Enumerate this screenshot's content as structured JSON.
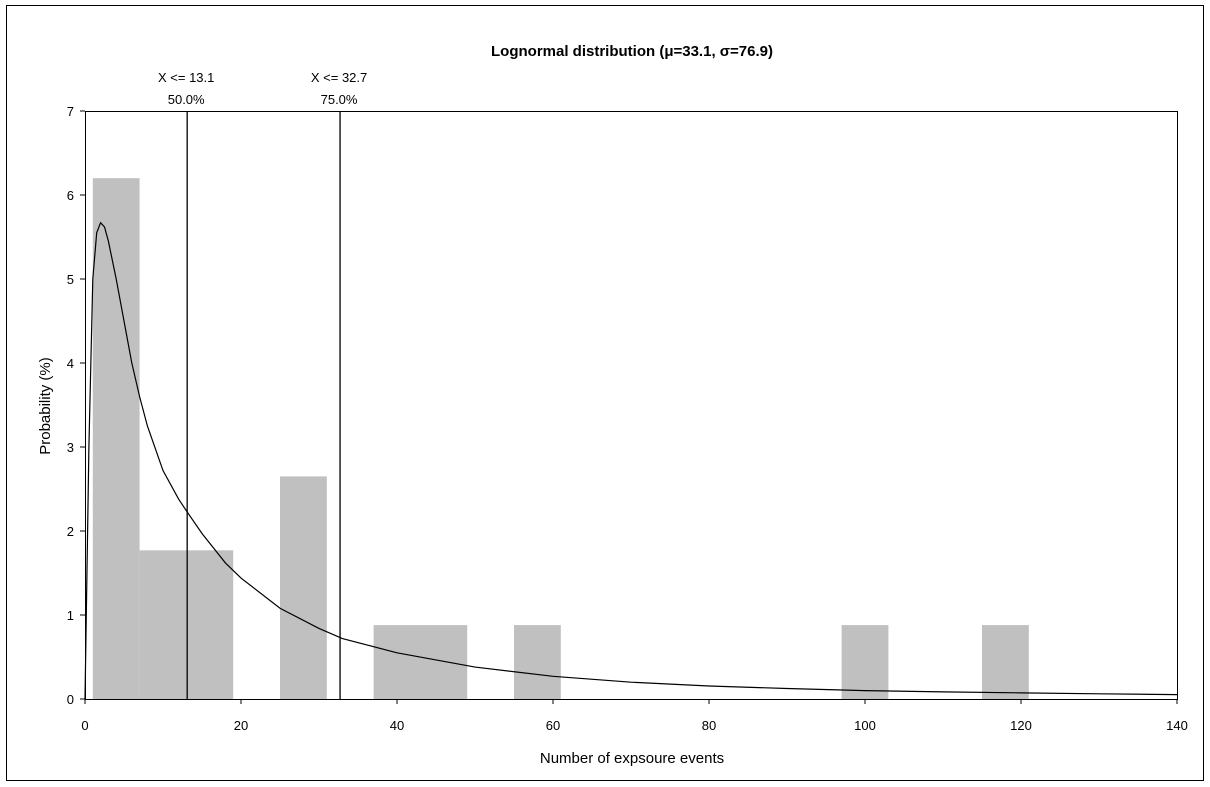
{
  "chart_data": {
    "type": "bar",
    "title": "Lognormal distribution (μ=33.1, σ=76.9)",
    "xlabel": "Number of expsoure events",
    "ylabel": "Probability (%)",
    "xlim": [
      0,
      140
    ],
    "ylim": [
      0,
      7
    ],
    "x_ticks": [
      "0",
      "20",
      "40",
      "60",
      "80",
      "100",
      "120",
      "140"
    ],
    "y_ticks": [
      "0",
      "1",
      "2",
      "3",
      "4",
      "5",
      "6",
      "7"
    ],
    "grid": false,
    "legend": "none",
    "histogram": {
      "name": "",
      "color": "#c0c0c0",
      "bins": [
        {
          "x0": 1,
          "x1": 7,
          "value": 6.2
        },
        {
          "x0": 7,
          "x1": 19,
          "value": 1.77
        },
        {
          "x0": 25,
          "x1": 31,
          "value": 2.65
        },
        {
          "x0": 37,
          "x1": 49,
          "value": 0.88
        },
        {
          "x0": 55,
          "x1": 61,
          "value": 0.88
        },
        {
          "x0": 97,
          "x1": 103,
          "value": 0.88
        },
        {
          "x0": 115,
          "x1": 121,
          "value": 0.88
        }
      ]
    },
    "fitted_curve": {
      "name": "",
      "color": "#000000",
      "x": [
        0.5,
        1,
        1.5,
        2,
        2.5,
        3,
        4,
        5,
        6,
        7,
        8,
        10,
        12,
        13,
        15,
        18,
        20,
        25,
        30,
        33,
        40,
        50,
        60,
        70,
        80,
        90,
        100,
        110,
        120,
        130,
        140
      ],
      "y": [
        3.0,
        5.0,
        5.55,
        5.67,
        5.62,
        5.45,
        5.0,
        4.5,
        4.0,
        3.6,
        3.25,
        2.72,
        2.38,
        2.24,
        1.97,
        1.62,
        1.44,
        1.08,
        0.84,
        0.72,
        0.55,
        0.38,
        0.27,
        0.2,
        0.155,
        0.125,
        0.1,
        0.085,
        0.073,
        0.062,
        0.052
      ]
    },
    "markers": [
      {
        "x": 13.1,
        "label": "X <= 13.1",
        "percent": "50.0%"
      },
      {
        "x": 32.7,
        "label": "X <= 32.7",
        "percent": "75.0%"
      }
    ]
  }
}
